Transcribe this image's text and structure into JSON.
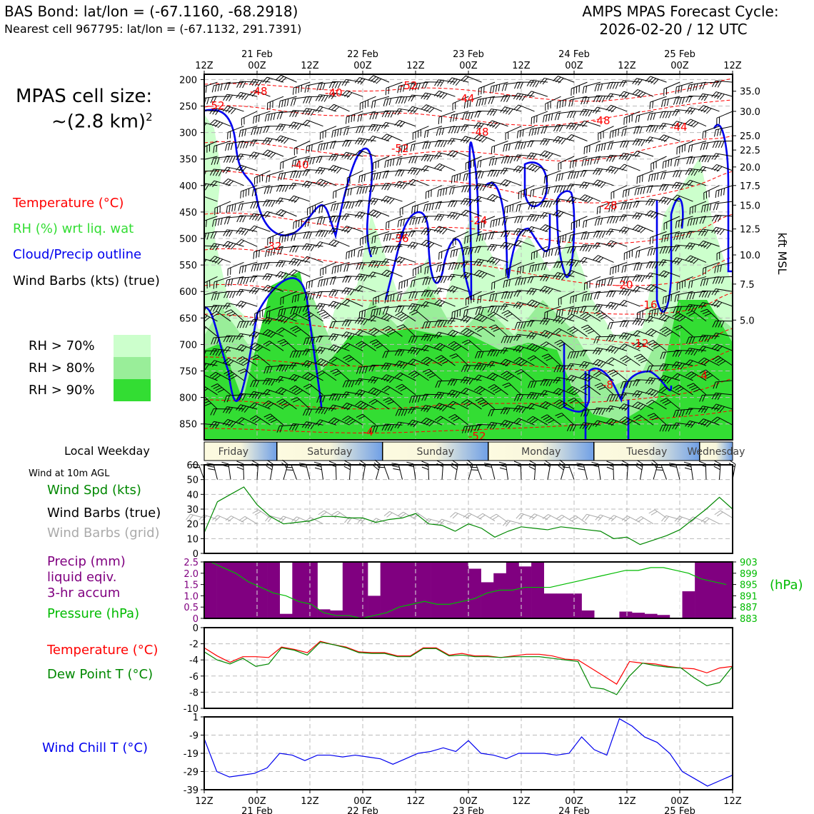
{
  "header": {
    "title_left": "BAS Bond: lat/lon = (-67.1160, -68.2918)",
    "subtitle_left": "Nearest cell 967795: lat/lon = (-67.1132, 291.7391)",
    "title_right_line1": "AMPS MPAS Forecast Cycle:",
    "title_right_line2": "2026-02-20 / 12 UTC"
  },
  "legend": {
    "cell_size_line1": "MPAS cell size:",
    "cell_size_line2": "~(2.8 km)",
    "cell_size_sup": "2",
    "temperature": "Temperature (°C)",
    "rh": "RH (%) wrt liq. wat",
    "cloud": "Cloud/Precip outline",
    "wind_barbs": "Wind Barbs (kts) (true)",
    "rh70": "RH > 70%",
    "rh80": "RH > 80%",
    "rh90": "RH > 90%"
  },
  "colors": {
    "temperature": "#ff0000",
    "rh": "#33dd33",
    "cloud": "#0000ee",
    "rh70": "#ccffcc",
    "rh80": "#99ee99",
    "rh90": "#33dd33",
    "wind_speed": "#008800",
    "precip": "#800080",
    "pressure": "#00bb00",
    "windchill": "#0000ee",
    "grid_barbs": "#aaaaaa"
  },
  "time_axis": {
    "hours": [
      "12Z",
      "00Z",
      "12Z",
      "00Z",
      "12Z",
      "00Z",
      "12Z",
      "00Z",
      "12Z",
      "00Z",
      "12Z"
    ],
    "dates": [
      "",
      "21 Feb",
      "",
      "22 Feb",
      "",
      "23 Feb",
      "",
      "24 Feb",
      "",
      "25 Feb",
      ""
    ]
  },
  "weekday": {
    "label": "Local Weekday",
    "days": [
      "Friday",
      "Saturday",
      "Sunday",
      "Monday",
      "Tuesday",
      "Wednesday"
    ]
  },
  "wind_panel": {
    "title": "Wind at 10m AGL",
    "label_speed": "Wind Spd (kts)",
    "label_barbs": "Wind Barbs (true)",
    "label_grid": "Wind Barbs (grid)"
  },
  "precip_panel": {
    "label_line1": "Precip (mm)",
    "label_line2": "liquid eqiv.",
    "label_line3": "3-hr accum",
    "label_pressure": "Pressure (hPa)",
    "right_unit": "(hPa)"
  },
  "temp_panel": {
    "label_temp": "Temperature (°C)",
    "label_dew": "Dew Point T (°C)"
  },
  "chill_panel": {
    "label": "Wind Chill T (°C)"
  },
  "chart_data": [
    {
      "type": "heatmap",
      "panel": "cross_section",
      "y_left_ticks": [
        "200",
        "250",
        "300",
        "350",
        "400",
        "450",
        "500",
        "550",
        "600",
        "650",
        "700",
        "750",
        "800",
        "850"
      ],
      "y_right_label": "kft MSL",
      "y_right_ticks": [
        "35.0",
        "30.0",
        "25.0",
        "22.5",
        "20.0",
        "17.5",
        "15.0",
        "12.5",
        "10.0",
        "7.5",
        "5.0"
      ],
      "y_right_pressures": [
        222,
        260,
        306,
        333,
        365,
        400,
        437,
        482,
        531,
        586,
        654
      ],
      "temperature_contour_labels": [
        "-48",
        "-52",
        "-40",
        "-48",
        "-44",
        "-52",
        "-52",
        "-48",
        "-44",
        "-40",
        "-28",
        "-32",
        "-36",
        "-24",
        "-20",
        "-16",
        "-12",
        "-8",
        "-4",
        "-4",
        "-52"
      ]
    },
    {
      "type": "line",
      "panel": "wind_speed",
      "ylim": [
        0,
        60
      ],
      "y_ticks": [
        "0",
        "10",
        "20",
        "30",
        "40",
        "50",
        "60"
      ],
      "x_hours": [
        0,
        3,
        6,
        9,
        12,
        15,
        18,
        21,
        24,
        27,
        30,
        33,
        36,
        39,
        42,
        45,
        48,
        51,
        54,
        57,
        60,
        63,
        66,
        69,
        72,
        75,
        78,
        81,
        84,
        87,
        90,
        93,
        96,
        99,
        102,
        105,
        108,
        111,
        114,
        117,
        120
      ],
      "values": [
        14,
        35,
        40,
        45,
        33,
        25,
        20,
        21,
        22,
        25,
        25,
        24,
        24,
        21,
        23,
        24,
        27,
        20,
        19,
        15,
        20,
        17,
        11,
        15,
        18,
        17,
        16,
        18,
        17,
        16,
        15,
        10,
        11,
        6,
        9,
        12,
        16,
        23,
        30,
        38,
        30
      ]
    },
    {
      "type": "bar",
      "panel": "precip_pressure",
      "ylim": [
        0,
        2.5
      ],
      "y_ticks": [
        "0",
        "0.5",
        "1.0",
        "1.5",
        "2.0",
        "2.5"
      ],
      "y_right_ticks": [
        "883",
        "887",
        "891",
        "895",
        "899",
        "903"
      ],
      "y_right_lim": [
        883,
        903
      ],
      "bars_mm": [
        2.5,
        2.5,
        2.5,
        2.5,
        2.5,
        2.5,
        0.2,
        2.5,
        2.5,
        0.4,
        0.35,
        2.5,
        2.5,
        1.0,
        2.5,
        2.5,
        2.5,
        2.5,
        2.5,
        2.5,
        2.5,
        2.2,
        1.6,
        2.0,
        2.5,
        2.3,
        2.5,
        1.1,
        1.1,
        1.1,
        0.35,
        0,
        0,
        0.3,
        0.25,
        0.2,
        0.15,
        0,
        1.2,
        2.5,
        2.5,
        2.5
      ],
      "pressure_hpa": [
        903,
        901,
        899,
        896,
        894,
        892,
        891,
        889,
        888,
        885,
        884,
        884,
        883,
        884,
        885,
        887,
        888,
        889,
        888,
        888,
        889,
        890,
        892,
        893,
        893,
        894,
        894,
        894,
        895,
        896,
        897,
        898,
        899,
        900,
        900,
        901,
        901,
        900,
        899,
        897,
        896,
        895
      ]
    },
    {
      "type": "line",
      "panel": "temperature",
      "ylim": [
        -10,
        0
      ],
      "y_ticks": [
        "0",
        "-2",
        "-4",
        "-6",
        "-8",
        "-10"
      ],
      "series": [
        {
          "name": "Temperature (°C)",
          "values": [
            -2.5,
            -3.5,
            -4.3,
            -3.6,
            -3.6,
            -3.7,
            -2.4,
            -2.7,
            -3.1,
            -1.7,
            -2.1,
            -2.4,
            -3.0,
            -3.1,
            -3.1,
            -3.5,
            -3.5,
            -2.5,
            -2.5,
            -3.4,
            -3.2,
            -3.5,
            -3.5,
            -3.7,
            -3.5,
            -3.3,
            -3.3,
            -3.5,
            -3.9,
            -4.0,
            -5.0,
            -6.0,
            -7.0,
            -4.2,
            -4.4,
            -4.5,
            -4.8,
            -5.0,
            -5.1,
            -5.6,
            -5.0,
            -4.8
          ]
        },
        {
          "name": "Dew Point T (°C)",
          "values": [
            -3.0,
            -4.0,
            -4.5,
            -3.8,
            -4.8,
            -4.5,
            -2.5,
            -2.8,
            -3.4,
            -1.8,
            -2.1,
            -2.5,
            -3.1,
            -3.2,
            -3.2,
            -3.6,
            -3.6,
            -2.6,
            -2.6,
            -3.5,
            -3.4,
            -3.6,
            -3.6,
            -3.7,
            -3.6,
            -3.6,
            -3.6,
            -3.8,
            -4.0,
            -4.2,
            -7.4,
            -7.6,
            -8.3,
            -6.0,
            -4.4,
            -4.7,
            -4.9,
            -5.0,
            -6.2,
            -7.2,
            -6.8,
            -4.8
          ]
        }
      ]
    },
    {
      "type": "line",
      "panel": "wind_chill",
      "ylim": [
        -39,
        1
      ],
      "y_ticks": [
        "1",
        "-9",
        "-19",
        "-29",
        "-39"
      ],
      "values": [
        -11,
        -29,
        -32,
        -31,
        -30,
        -27,
        -19,
        -20,
        -23,
        -20,
        -20,
        -21,
        -20,
        -21,
        -22,
        -25,
        -22,
        -19,
        -18,
        -16,
        -18,
        -12,
        -19,
        -20,
        -22,
        -19,
        -19,
        -19,
        -20,
        -19,
        -10,
        -17,
        -20,
        0,
        -4,
        -10,
        -13,
        -19,
        -29,
        -33,
        -37,
        -34,
        -31
      ]
    }
  ]
}
